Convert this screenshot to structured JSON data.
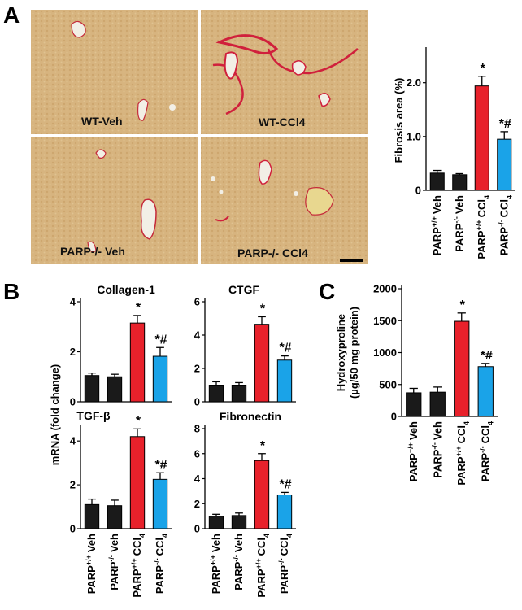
{
  "panels": {
    "A": "A",
    "B": "B",
    "C": "C"
  },
  "micrographs": {
    "labels": [
      "WT-Veh",
      "WT-CCl4",
      "PARP-/- Veh",
      "PARP-/- CCl4"
    ]
  },
  "colors": {
    "bars": [
      "#1a1a1a",
      "#1a1a1a",
      "#e8212b",
      "#1aa3e8"
    ],
    "tissue": "#d9b783",
    "stain": "#d0203c",
    "vessel": "#f2efe6"
  },
  "chart_data": [
    {
      "id": "A",
      "type": "bar",
      "ylabel": "Fibrosis area  (%)",
      "ylim": [
        0,
        2.6
      ],
      "yticks": [
        "0",
        "1.0",
        "2.0"
      ],
      "categories": [
        "PARP+/+ Veh",
        "PARP-/- Veh",
        "PARP+/+ CCl4",
        "PARP-/- CCl4"
      ],
      "values": [
        0.32,
        0.29,
        1.94,
        0.95
      ],
      "errors": [
        0.05,
        0.02,
        0.18,
        0.14
      ],
      "annotations": [
        "",
        "",
        "*",
        "*#"
      ]
    },
    {
      "id": "B-collagen",
      "type": "bar",
      "title": "Collagen-1",
      "ylim": [
        0,
        4
      ],
      "yticks": [
        "0",
        "2",
        "4"
      ],
      "values": [
        1.05,
        1.0,
        3.15,
        1.82
      ],
      "errors": [
        0.1,
        0.1,
        0.3,
        0.35
      ],
      "annotations": [
        "",
        "",
        "*",
        "*#"
      ]
    },
    {
      "id": "B-ctgf",
      "type": "bar",
      "title": "CTGF",
      "ylim": [
        0,
        6
      ],
      "yticks": [
        "0",
        "2",
        "4",
        "6"
      ],
      "values": [
        1.0,
        1.0,
        4.65,
        2.5
      ],
      "errors": [
        0.2,
        0.15,
        0.45,
        0.25
      ],
      "annotations": [
        "",
        "",
        "*",
        "*#"
      ]
    },
    {
      "id": "B-tgfb",
      "type": "bar",
      "title": "TGF-β",
      "ylim": [
        0,
        4.6
      ],
      "yticks": [
        "0",
        "2",
        "4"
      ],
      "values": [
        1.1,
        1.05,
        4.2,
        2.25
      ],
      "errors": [
        0.25,
        0.25,
        0.35,
        0.3
      ],
      "annotations": [
        "",
        "",
        "*",
        "*#"
      ]
    },
    {
      "id": "B-fibronectin",
      "type": "bar",
      "title": "Fibronectin",
      "ylim": [
        0,
        8
      ],
      "yticks": [
        "0",
        "2",
        "4",
        "6",
        "8"
      ],
      "values": [
        1.0,
        1.05,
        5.45,
        2.7
      ],
      "errors": [
        0.15,
        0.2,
        0.55,
        0.2
      ],
      "annotations": [
        "",
        "",
        "*",
        "*#"
      ]
    },
    {
      "id": "C",
      "type": "bar",
      "ylabel": "Hydroxyproline (µg/50 mg protein)",
      "ylim": [
        0,
        2000
      ],
      "yticks": [
        "0",
        "500",
        "1000",
        "1500",
        "2000"
      ],
      "categories": [
        "PARP+/+ Veh",
        "PARP-/- Veh",
        "PARP+/+ CCl4",
        "PARP-/- CCl4"
      ],
      "values": [
        370,
        380,
        1490,
        780
      ],
      "errors": [
        70,
        80,
        130,
        50
      ],
      "annotations": [
        "",
        "",
        "*",
        "*#"
      ]
    }
  ],
  "B_shared": {
    "ylabel": "mRNA (fold change)",
    "categories": [
      "PARP+/+ Veh",
      "PARP-/- Veh",
      "PARP+/+ CCl4",
      "PARP-/- CCl4"
    ]
  }
}
